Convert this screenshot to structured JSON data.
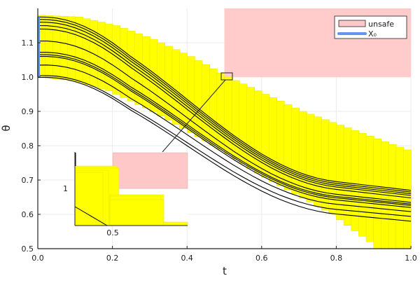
{
  "chart_data": {
    "type": "line",
    "title": "",
    "xlabel": "t",
    "ylabel": "θ",
    "xlim": [
      0.0,
      1.0
    ],
    "ylim": [
      0.5,
      1.2
    ],
    "grid": true,
    "legend_position": "top-right",
    "x_ticks": [
      "0.0",
      "0.2",
      "0.4",
      "0.6",
      "0.8",
      "1.0"
    ],
    "y_ticks": [
      "0.5",
      "0.6",
      "0.7",
      "0.8",
      "0.9",
      "1.0",
      "1.1"
    ],
    "legend": [
      {
        "label": "unsafe",
        "type": "rect",
        "color": "#ffc8c8"
      },
      {
        "label": "X₀",
        "type": "line",
        "color": "#6495ed"
      }
    ],
    "unsafe_region": {
      "t": [
        0.5,
        1.0
      ],
      "theta": [
        1.0,
        1.2
      ],
      "color": "#ffc8c8"
    },
    "initial_set": {
      "t": 0.0,
      "theta": [
        1.0,
        1.175
      ],
      "color": "#6495ed"
    },
    "reach_tube": {
      "color": "#ffff00",
      "upper": [
        [
          0,
          1.18
        ],
        [
          0.1,
          1.175
        ],
        [
          0.2,
          1.15
        ],
        [
          0.3,
          1.11
        ],
        [
          0.4,
          1.06
        ],
        [
          0.5,
          1.0
        ],
        [
          0.6,
          0.95
        ],
        [
          0.7,
          0.9
        ],
        [
          0.8,
          0.86
        ],
        [
          0.9,
          0.82
        ],
        [
          1.0,
          0.78
        ]
      ],
      "lower": [
        [
          0,
          1.0
        ],
        [
          0.1,
          0.99
        ],
        [
          0.2,
          0.96
        ],
        [
          0.3,
          0.91
        ],
        [
          0.4,
          0.85
        ],
        [
          0.5,
          0.79
        ],
        [
          0.6,
          0.72
        ],
        [
          0.7,
          0.66
        ],
        [
          0.8,
          0.6
        ],
        [
          0.9,
          0.52
        ],
        [
          0.92,
          0.5
        ],
        [
          1.0,
          0.5
        ]
      ]
    },
    "trajectories": {
      "theta0": [
        1.175,
        1.168,
        1.16,
        1.15,
        1.14,
        1.105,
        1.072,
        1.065,
        1.06,
        1.035,
        1.004,
        0.999
      ],
      "theta_end": [
        0.67,
        0.665,
        0.66,
        0.655,
        0.648,
        0.635,
        0.63,
        0.626,
        0.62,
        0.608,
        0.594,
        0.58
      ]
    },
    "inset": {
      "x_ticks": [
        "0.5"
      ],
      "y_ticks": [
        "1"
      ],
      "description": "zoom of region near t=0.5, θ=1.0"
    }
  }
}
